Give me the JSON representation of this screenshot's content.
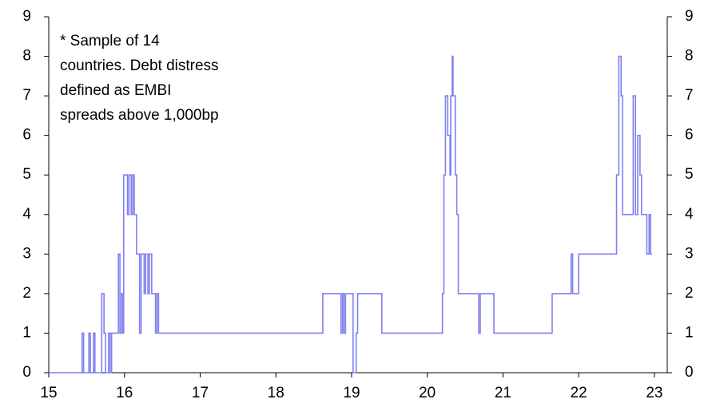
{
  "chart_data": {
    "type": "line",
    "step": "post",
    "annotation": [
      "* Sample of 14",
      "countries. Debt distress",
      "defined as EMBI",
      "spreads above 1,000bp"
    ],
    "series": [
      {
        "color": "#8080f0",
        "x": [
          15.0,
          15.44,
          15.46,
          15.53,
          15.55,
          15.59,
          15.61,
          15.7,
          15.73,
          15.75,
          15.79,
          15.81,
          15.83,
          15.92,
          15.94,
          15.96,
          15.98,
          15.99,
          16.04,
          16.06,
          16.09,
          16.11,
          16.13,
          16.16,
          16.2,
          16.22,
          16.26,
          16.28,
          16.31,
          16.33,
          16.36,
          16.41,
          16.43,
          16.45,
          18.62,
          18.86,
          18.88,
          18.9,
          18.92,
          19.02,
          19.06,
          19.08,
          19.4,
          20.2,
          20.22,
          20.24,
          20.27,
          20.3,
          20.31,
          20.33,
          20.34,
          20.37,
          20.39,
          20.41,
          20.68,
          20.7,
          20.88,
          21.65,
          21.9,
          21.92,
          22.0,
          22.5,
          22.53,
          22.56,
          22.58,
          22.72,
          22.75,
          22.78,
          22.81,
          22.83,
          22.9,
          22.93,
          22.95,
          22.97
        ],
        "values": [
          0,
          1,
          0,
          1,
          0,
          1,
          0,
          2,
          1,
          0,
          1,
          0,
          1,
          3,
          1,
          2,
          1,
          5,
          4,
          5,
          4,
          5,
          4,
          3,
          1,
          3,
          2,
          3,
          2,
          3,
          2,
          1,
          2,
          1,
          2,
          1,
          2,
          1,
          2,
          0,
          1,
          2,
          1,
          2,
          5,
          7,
          6,
          5,
          7,
          8,
          7,
          5,
          4,
          2,
          1,
          2,
          1,
          2,
          3,
          2,
          3,
          5,
          8,
          7,
          4,
          7,
          4,
          6,
          5,
          4,
          3,
          4,
          3,
          3
        ]
      }
    ],
    "xlim": [
      15,
      23.17
    ],
    "xticks": [
      15,
      16,
      17,
      18,
      19,
      20,
      21,
      22,
      23
    ],
    "ylim": [
      0,
      9
    ],
    "yticks": [
      0,
      1,
      2,
      3,
      4,
      5,
      6,
      7,
      8,
      9
    ],
    "y2lim": [
      0,
      9
    ],
    "y2ticks": [
      0,
      1,
      2,
      3,
      4,
      5,
      6,
      7,
      8,
      9
    ],
    "grid": false
  }
}
